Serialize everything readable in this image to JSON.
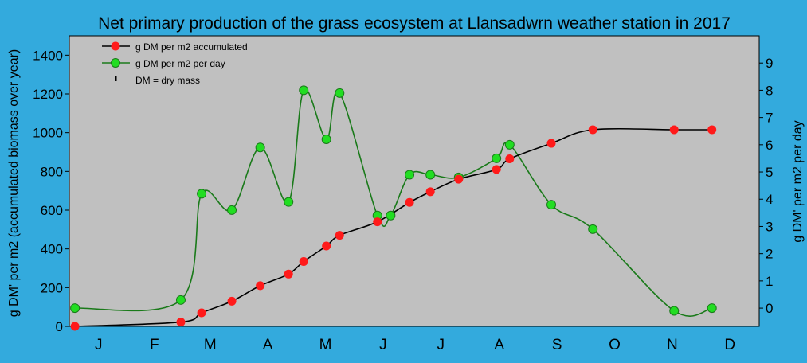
{
  "colors": {
    "background": "#33aadd",
    "plot": "#c0c0c0",
    "accumulated": "#000000",
    "accumulated_marker": "#ff1a1a",
    "daily": "#1a7a1a",
    "daily_marker": "#22dd22"
  },
  "chart_data": {
    "type": "line",
    "title": "Net primary production of the grass ecosystem at Llansadwrn weather station in 2017",
    "ylabel_left": "g DM' per m2 (accumulated biomass over year)",
    "ylabel_right": "g DM' per m2 per day",
    "months": [
      "J",
      "F",
      "M",
      "A",
      "M",
      "J",
      "J",
      "A",
      "S",
      "O",
      "N",
      "D"
    ],
    "x_unit": "day of year",
    "xlim": [
      0,
      365
    ],
    "ylim_left": [
      0,
      1500
    ],
    "yticks_left": [
      0,
      200,
      400,
      600,
      800,
      1000,
      1200,
      1400
    ],
    "ylim_right": [
      -0.67,
      10.0
    ],
    "yticks_right": [
      0,
      1,
      2,
      3,
      4,
      5,
      6,
      7,
      8,
      9
    ],
    "legend": {
      "placement": "top-left",
      "entries": [
        "g DM per m2 accumulated",
        "g DM per m2 per day",
        "DM = dry mass"
      ]
    },
    "series": [
      {
        "name": "g DM per m2 accumulated",
        "axis": "left",
        "x": [
          3,
          59,
          70,
          86,
          101,
          116,
          124,
          136,
          143,
          163,
          180,
          191,
          206,
          226,
          233,
          255,
          277,
          320,
          340
        ],
        "y": [
          0,
          22,
          70,
          130,
          210,
          270,
          335,
          415,
          470,
          540,
          640,
          695,
          760,
          810,
          865,
          945,
          1015,
          1015,
          1015
        ]
      },
      {
        "name": "g DM per m2 per day",
        "axis": "right",
        "x": [
          3,
          59,
          70,
          86,
          101,
          116,
          124,
          136,
          143,
          163,
          170,
          180,
          191,
          206,
          226,
          233,
          255,
          277,
          320,
          340
        ],
        "y": [
          0.0,
          0.3,
          4.2,
          3.6,
          5.9,
          3.9,
          8.0,
          6.2,
          7.9,
          3.4,
          3.4,
          4.9,
          4.9,
          4.8,
          5.5,
          6.0,
          3.8,
          2.9,
          -0.1,
          0.0
        ]
      }
    ]
  }
}
